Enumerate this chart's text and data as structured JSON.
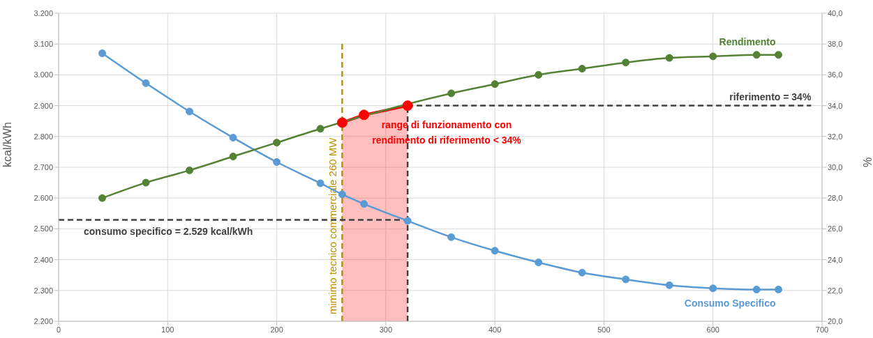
{
  "chart_data": {
    "type": "line",
    "ylabel": "kcal/kWh",
    "y2label": "%",
    "x": [
      40,
      80,
      120,
      160,
      200,
      240,
      260,
      280,
      320,
      360,
      400,
      440,
      480,
      520,
      560,
      600,
      640,
      660
    ],
    "series": [
      {
        "name": "Consumo Specifico",
        "color": "#5b9bd5",
        "values": [
          3070,
          2973,
          2881,
          2796,
          2717,
          2648,
          2612,
          2581,
          2526,
          2473,
          2429,
          2391,
          2358,
          2336,
          2317,
          2307,
          2303,
          2303
        ]
      },
      {
        "name": "Rendimento",
        "color": "#548235",
        "axis": "y2",
        "values": [
          28.0,
          29.0,
          29.8,
          30.7,
          31.6,
          32.5,
          null,
          null,
          null,
          34.8,
          35.4,
          36.0,
          36.4,
          36.8,
          37.1,
          37.2,
          37.3,
          37.3
        ]
      },
      {
        "type": "area",
        "color": "#ff0000",
        "axis": "y2",
        "x": [
          260,
          280,
          320
        ],
        "values": [
          32.9,
          33.4,
          34.0
        ]
      }
    ],
    "xlim": [
      0,
      700
    ],
    "xticks": [
      0,
      100,
      200,
      300,
      400,
      500,
      600,
      700
    ],
    "ylim": [
      2200,
      3200
    ],
    "yticks": [
      {
        "value": 2200,
        "label": "2.200"
      },
      {
        "value": 2300,
        "label": "2.300"
      },
      {
        "value": 2400,
        "label": "2.400"
      },
      {
        "value": 2500,
        "label": "2.500"
      },
      {
        "value": 2600,
        "label": "2.600"
      },
      {
        "value": 2700,
        "label": "2.700"
      },
      {
        "value": 2800,
        "label": "2.800"
      },
      {
        "value": 2900,
        "label": "2.900"
      },
      {
        "value": 3000,
        "label": "3.000"
      },
      {
        "value": 3100,
        "label": "3.100"
      },
      {
        "value": 3200,
        "label": "3.200"
      }
    ],
    "y2lim": [
      20,
      40
    ],
    "y2ticks": [
      {
        "value": 20,
        "label": "20,0"
      },
      {
        "value": 22,
        "label": "22,0"
      },
      {
        "value": 24,
        "label": "24,0"
      },
      {
        "value": 26,
        "label": "26,0"
      },
      {
        "value": 28,
        "label": "28,0"
      },
      {
        "value": 30,
        "label": "30,0"
      },
      {
        "value": 32,
        "label": "32,0"
      },
      {
        "value": 34,
        "label": "34,0"
      },
      {
        "value": 36,
        "label": "36,0"
      },
      {
        "value": 38,
        "label": "38,0"
      },
      {
        "value": 40,
        "label": "40,0"
      }
    ],
    "ref_lines": [
      {
        "axis": "x",
        "value": 260,
        "label": "mimimo tecnico commerciale 260 MW",
        "color": "#bf9000",
        "line_style": "dashed"
      },
      {
        "axis": "x",
        "value": 320,
        "color": "#404040",
        "line_style": "dashed"
      },
      {
        "axis": "y",
        "value": 2529,
        "label": "consumo specifico  = 2.529 kcal/kWh",
        "color": "#404040",
        "line_style": "dashed"
      },
      {
        "axis": "y2",
        "value": 34,
        "label": "riferimento = 34%",
        "color": "#404040",
        "line_style": "dashed"
      }
    ],
    "annotations": [
      "range di funzionamento con\nrendimento di riferimento < 34%"
    ],
    "grid": true,
    "marker": "circle",
    "line_style": "solid"
  }
}
